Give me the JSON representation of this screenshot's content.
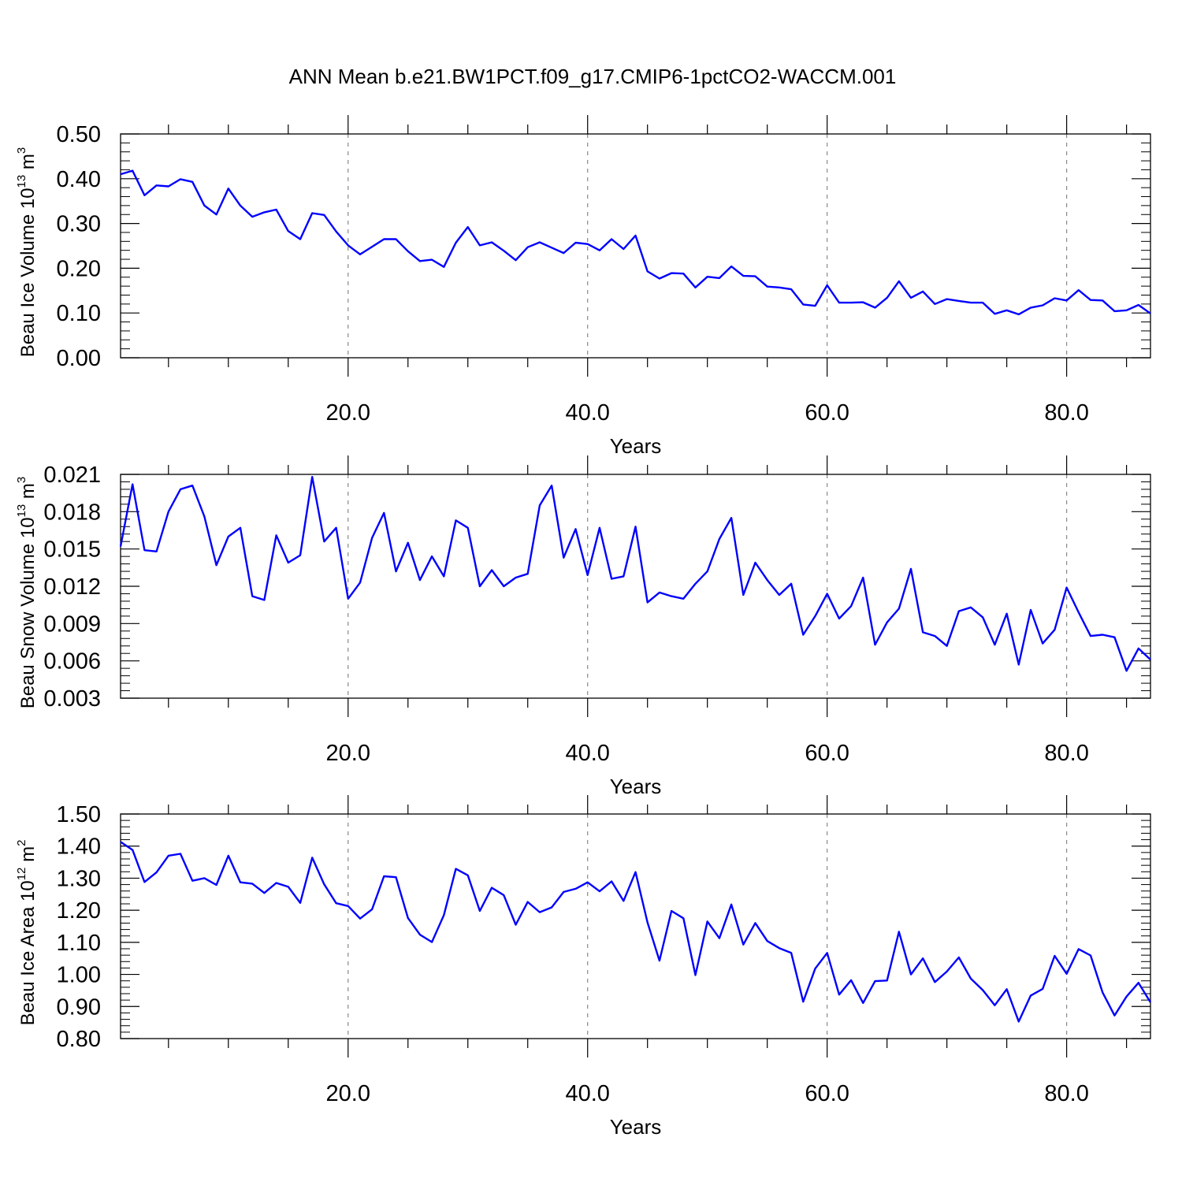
{
  "title": "ANN Mean b.e21.BW1PCT.f09_g17.CMIP6-1pctCO2-WACCM.001",
  "colors": {
    "line": "#0000ff",
    "axis": "#000000",
    "grid": "#888888"
  },
  "chart_data": [
    {
      "type": "line",
      "ylabel": {
        "main": "Beau Ice Volume 10",
        "exponent": "13",
        "unit": " m",
        "unit_exponent": "3"
      },
      "xlabel": "Years",
      "xlim": [
        1,
        87
      ],
      "ylim": [
        0.0,
        0.5
      ],
      "x_ticks": [
        20,
        40,
        60,
        80
      ],
      "x_tick_labels": [
        "20.0",
        "40.0",
        "60.0",
        "80.0"
      ],
      "y_ticks": [
        0.0,
        0.1,
        0.2,
        0.3,
        0.4,
        0.5
      ],
      "y_tick_labels": [
        "0.00",
        "0.10",
        "0.20",
        "0.30",
        "0.40",
        "0.50"
      ],
      "grid": "vertical-dashed",
      "x": [
        1,
        2,
        3,
        4,
        5,
        6,
        7,
        8,
        9,
        10,
        11,
        12,
        13,
        14,
        15,
        16,
        17,
        18,
        19,
        20,
        21,
        22,
        23,
        24,
        25,
        26,
        27,
        28,
        29,
        30,
        31,
        32,
        33,
        34,
        35,
        36,
        37,
        38,
        39,
        40,
        41,
        42,
        43,
        44,
        45,
        46,
        47,
        48,
        49,
        50,
        51,
        52,
        53,
        54,
        55,
        56,
        57,
        58,
        59,
        60,
        61,
        62,
        63,
        64,
        65,
        66,
        67,
        68,
        69,
        70,
        71,
        72,
        73,
        74,
        75,
        76,
        77,
        78,
        79,
        80,
        81,
        82,
        83,
        84,
        85,
        86,
        87
      ],
      "values": [
        0.41,
        0.418,
        0.363,
        0.385,
        0.383,
        0.399,
        0.393,
        0.34,
        0.32,
        0.378,
        0.34,
        0.315,
        0.325,
        0.331,
        0.283,
        0.265,
        0.323,
        0.319,
        0.282,
        0.251,
        0.231,
        0.248,
        0.265,
        0.265,
        0.238,
        0.216,
        0.219,
        0.203,
        0.257,
        0.292,
        0.251,
        0.258,
        0.239,
        0.218,
        0.247,
        0.258,
        0.246,
        0.234,
        0.257,
        0.254,
        0.24,
        0.265,
        0.243,
        0.273,
        0.193,
        0.177,
        0.189,
        0.188,
        0.157,
        0.181,
        0.178,
        0.204,
        0.183,
        0.182,
        0.159,
        0.157,
        0.153,
        0.119,
        0.116,
        0.162,
        0.123,
        0.123,
        0.124,
        0.112,
        0.134,
        0.171,
        0.134,
        0.148,
        0.12,
        0.131,
        0.127,
        0.123,
        0.123,
        0.098,
        0.106,
        0.097,
        0.112,
        0.117,
        0.133,
        0.128,
        0.151,
        0.129,
        0.128,
        0.104,
        0.106,
        0.118,
        0.099
      ]
    },
    {
      "type": "line",
      "ylabel": {
        "main": "Beau Snow Volume 10",
        "exponent": "13",
        "unit": " m",
        "unit_exponent": "3"
      },
      "xlabel": "Years",
      "xlim": [
        1,
        87
      ],
      "ylim": [
        0.003,
        0.021
      ],
      "x_ticks": [
        20,
        40,
        60,
        80
      ],
      "x_tick_labels": [
        "20.0",
        "40.0",
        "60.0",
        "80.0"
      ],
      "y_ticks": [
        0.003,
        0.006,
        0.009,
        0.012,
        0.015,
        0.018,
        0.021
      ],
      "y_tick_labels": [
        "0.003",
        "0.006",
        "0.009",
        "0.012",
        "0.015",
        "0.018",
        "0.021"
      ],
      "grid": "vertical-dashed",
      "x": [
        1,
        2,
        3,
        4,
        5,
        6,
        7,
        8,
        9,
        10,
        11,
        12,
        13,
        14,
        15,
        16,
        17,
        18,
        19,
        20,
        21,
        22,
        23,
        24,
        25,
        26,
        27,
        28,
        29,
        30,
        31,
        32,
        33,
        34,
        35,
        36,
        37,
        38,
        39,
        40,
        41,
        42,
        43,
        44,
        45,
        46,
        47,
        48,
        49,
        50,
        51,
        52,
        53,
        54,
        55,
        56,
        57,
        58,
        59,
        60,
        61,
        62,
        63,
        64,
        65,
        66,
        67,
        68,
        69,
        70,
        71,
        72,
        73,
        74,
        75,
        76,
        77,
        78,
        79,
        80,
        81,
        82,
        83,
        84,
        85,
        86,
        87
      ],
      "values": [
        0.0152,
        0.0202,
        0.0149,
        0.0148,
        0.018,
        0.0198,
        0.0201,
        0.0176,
        0.0137,
        0.016,
        0.0167,
        0.0112,
        0.0109,
        0.0161,
        0.0139,
        0.0145,
        0.0208,
        0.0156,
        0.0167,
        0.011,
        0.0123,
        0.0159,
        0.0179,
        0.0132,
        0.0155,
        0.0125,
        0.0144,
        0.0128,
        0.0173,
        0.0167,
        0.012,
        0.0133,
        0.012,
        0.0127,
        0.013,
        0.0185,
        0.0201,
        0.0143,
        0.0166,
        0.0129,
        0.0167,
        0.0126,
        0.0128,
        0.0168,
        0.0107,
        0.0115,
        0.0112,
        0.011,
        0.0122,
        0.0132,
        0.0158,
        0.0175,
        0.0113,
        0.0139,
        0.0125,
        0.0113,
        0.0122,
        0.0081,
        0.0096,
        0.0114,
        0.0094,
        0.0104,
        0.0127,
        0.0073,
        0.0091,
        0.0102,
        0.0134,
        0.0083,
        0.008,
        0.0072,
        0.01,
        0.0103,
        0.0095,
        0.0073,
        0.0098,
        0.0057,
        0.0101,
        0.0074,
        0.0085,
        0.0119,
        0.0099,
        0.008,
        0.0081,
        0.0079,
        0.0052,
        0.007,
        0.0061
      ]
    },
    {
      "type": "line",
      "ylabel": {
        "main": "Beau Ice Area 10",
        "exponent": "12",
        "unit": " m",
        "unit_exponent": "2"
      },
      "xlabel": "Years",
      "xlim": [
        1,
        87
      ],
      "ylim": [
        0.8,
        1.5
      ],
      "x_ticks": [
        20,
        40,
        60,
        80
      ],
      "x_tick_labels": [
        "20.0",
        "40.0",
        "60.0",
        "80.0"
      ],
      "y_ticks": [
        0.8,
        0.9,
        1.0,
        1.1,
        1.2,
        1.3,
        1.4,
        1.5
      ],
      "y_tick_labels": [
        "0.80",
        "0.90",
        "1.00",
        "1.10",
        "1.20",
        "1.30",
        "1.40",
        "1.50"
      ],
      "grid": "vertical-dashed",
      "x": [
        1,
        2,
        3,
        4,
        5,
        6,
        7,
        8,
        9,
        10,
        11,
        12,
        13,
        14,
        15,
        16,
        17,
        18,
        19,
        20,
        21,
        22,
        23,
        24,
        25,
        26,
        27,
        28,
        29,
        30,
        31,
        32,
        33,
        34,
        35,
        36,
        37,
        38,
        39,
        40,
        41,
        42,
        43,
        44,
        45,
        46,
        47,
        48,
        49,
        50,
        51,
        52,
        53,
        54,
        55,
        56,
        57,
        58,
        59,
        60,
        61,
        62,
        63,
        64,
        65,
        66,
        67,
        68,
        69,
        70,
        71,
        72,
        73,
        74,
        75,
        76,
        77,
        78,
        79,
        80,
        81,
        82,
        83,
        84,
        85,
        86,
        87
      ],
      "values": [
        1.413,
        1.388,
        1.288,
        1.318,
        1.37,
        1.376,
        1.292,
        1.3,
        1.279,
        1.37,
        1.287,
        1.283,
        1.254,
        1.285,
        1.273,
        1.223,
        1.364,
        1.281,
        1.222,
        1.213,
        1.174,
        1.203,
        1.306,
        1.303,
        1.176,
        1.124,
        1.101,
        1.185,
        1.329,
        1.309,
        1.198,
        1.27,
        1.247,
        1.155,
        1.226,
        1.194,
        1.209,
        1.257,
        1.267,
        1.287,
        1.259,
        1.29,
        1.229,
        1.319,
        1.162,
        1.043,
        1.198,
        1.175,
        0.998,
        1.165,
        1.113,
        1.218,
        1.093,
        1.16,
        1.104,
        1.082,
        1.067,
        0.915,
        1.018,
        1.067,
        0.937,
        0.982,
        0.911,
        0.979,
        0.981,
        1.133,
        1.0,
        1.05,
        0.976,
        1.009,
        1.053,
        0.987,
        0.951,
        0.904,
        0.954,
        0.853,
        0.934,
        0.955,
        1.058,
        1.002,
        1.079,
        1.059,
        0.944,
        0.872,
        0.931,
        0.974,
        0.913
      ]
    }
  ]
}
